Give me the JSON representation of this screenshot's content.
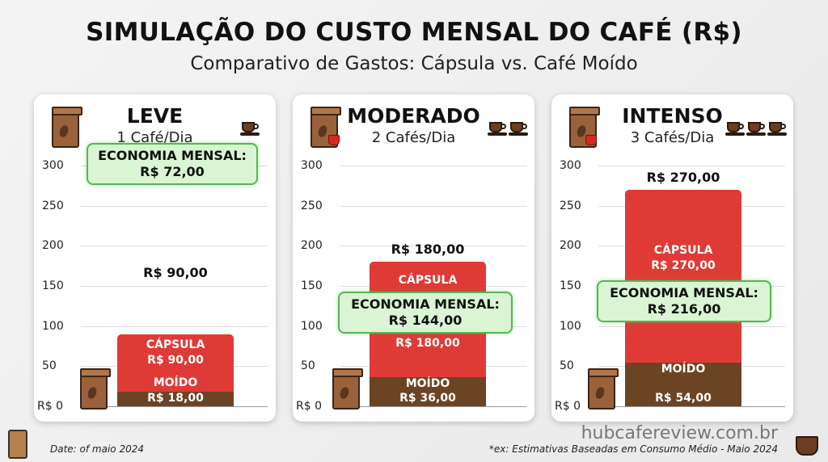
{
  "header": {
    "title": "SIMULAÇÃO DO CUSTO MENSAL DO CAFÉ (R$)",
    "subtitle": "Comparativo de Gastos: Cápsula vs. Café Moído"
  },
  "footer": {
    "date": "Date: of maio 2024",
    "brand": "hubcafereview.com.br",
    "note": "*ex: Estimativas Baseadas em Consumo Médio - Maio 2024"
  },
  "colors": {
    "capsula": "#e03a36",
    "moido": "#6b4423",
    "economia": "#d9f5d3"
  },
  "chart_data": [
    {
      "type": "bar",
      "title": "LEVE",
      "subtitle": "1 Café/Dia",
      "cups": 1,
      "ylim": [
        0,
        300
      ],
      "yticks": [
        "R$ 0",
        "50",
        "100",
        "150",
        "200",
        "250",
        "300"
      ],
      "series": [
        {
          "name": "CÁPSULA",
          "value": 90,
          "label": "R$ 90,00"
        },
        {
          "name": "MOÍDO",
          "value": 18,
          "label": "R$ 18,00"
        }
      ],
      "total_label": "R$ 90,00",
      "economia_label": "ECONOMIA MENSAL:",
      "economia_value": "R$ 72,00"
    },
    {
      "type": "bar",
      "title": "MODERADO",
      "subtitle": "2 Cafés/Dia",
      "cups": 2,
      "ylim": [
        0,
        300
      ],
      "yticks": [
        "R$ 0",
        "50",
        "100",
        "150",
        "200",
        "250",
        "300"
      ],
      "series": [
        {
          "name": "CÁPSULA",
          "value": 180,
          "label": "R$ 180,00"
        },
        {
          "name": "MOÍDO",
          "value": 36,
          "label": "R$ 36,00"
        }
      ],
      "total_label": "R$ 180,00",
      "economia_label": "ECONOMIA MENSAL:",
      "economia_value": "R$ 144,00"
    },
    {
      "type": "bar",
      "title": "INTENSO",
      "subtitle": "3 Cafés/Dia",
      "cups": 3,
      "ylim": [
        0,
        300
      ],
      "yticks": [
        "R$ 0",
        "50",
        "100",
        "150",
        "200",
        "250",
        "300"
      ],
      "series": [
        {
          "name": "CÁPSULA",
          "value": 270,
          "label": "R$ 270,00"
        },
        {
          "name": "MOÍDO",
          "value": 54,
          "label": "R$ 54,00"
        }
      ],
      "total_label": "R$ 270,00",
      "economia_label": "ECONOMIA MENSAL:",
      "economia_value": "R$ 216,00"
    }
  ]
}
